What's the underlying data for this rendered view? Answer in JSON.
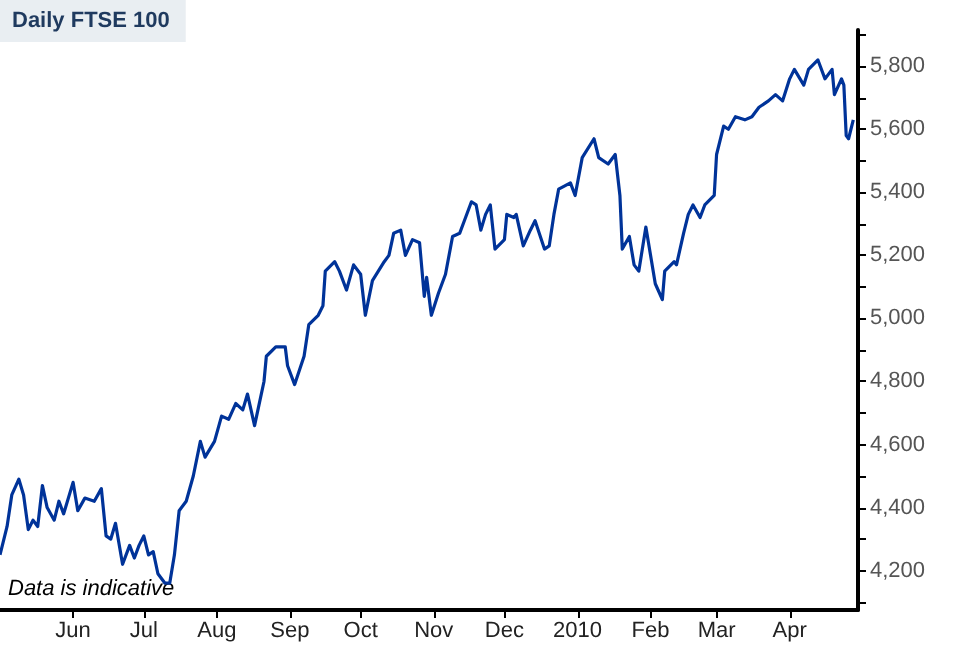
{
  "chart_data": {
    "type": "line",
    "title": "Daily FTSE 100",
    "annotations": [
      "Data is indicative"
    ],
    "x": [
      "2009-05-01",
      "2009-05-04",
      "2009-05-06",
      "2009-05-09",
      "2009-05-11",
      "2009-05-13",
      "2009-05-15",
      "2009-05-17",
      "2009-05-19",
      "2009-05-21",
      "2009-05-24",
      "2009-05-26",
      "2009-05-28",
      "2009-06-01",
      "2009-06-03",
      "2009-06-06",
      "2009-06-10",
      "2009-06-13",
      "2009-06-15",
      "2009-06-17",
      "2009-06-19",
      "2009-06-22",
      "2009-06-25",
      "2009-06-27",
      "2009-06-29",
      "2009-07-01",
      "2009-07-03",
      "2009-07-05",
      "2009-07-07",
      "2009-07-10",
      "2009-07-12",
      "2009-07-14",
      "2009-07-16",
      "2009-07-19",
      "2009-07-22",
      "2009-07-25",
      "2009-07-27",
      "2009-07-31",
      "2009-08-03",
      "2009-08-06",
      "2009-08-09",
      "2009-08-12",
      "2009-08-14",
      "2009-08-17",
      "2009-08-21",
      "2009-08-22",
      "2009-08-26",
      "2009-08-30",
      "2009-08-31",
      "2009-09-03",
      "2009-09-07",
      "2009-09-09",
      "2009-09-13",
      "2009-09-15",
      "2009-09-16",
      "2009-09-20",
      "2009-09-22",
      "2009-09-25",
      "2009-09-28",
      "2009-10-01",
      "2009-10-03",
      "2009-10-06",
      "2009-10-11",
      "2009-10-13",
      "2009-10-15",
      "2009-10-18",
      "2009-10-20",
      "2009-10-23",
      "2009-10-26",
      "2009-10-28",
      "2009-10-29",
      "2009-10-31",
      "2009-11-03",
      "2009-11-06",
      "2009-11-09",
      "2009-11-12",
      "2009-11-14",
      "2009-11-17",
      "2009-11-19",
      "2009-11-21",
      "2009-11-23",
      "2009-11-25",
      "2009-11-27",
      "2009-12-01",
      "2009-12-02",
      "2009-12-05",
      "2009-12-06",
      "2009-12-09",
      "2009-12-12",
      "2009-12-14",
      "2009-12-18",
      "2009-12-20",
      "2009-12-22",
      "2009-12-24",
      "2009-12-29",
      "2009-12-31",
      "2010-01-03",
      "2010-01-08",
      "2010-01-10",
      "2010-01-14",
      "2010-01-17",
      "2010-01-19",
      "2010-01-20",
      "2010-01-23",
      "2010-01-25",
      "2010-01-27",
      "2010-01-30",
      "2010-02-03",
      "2010-02-06",
      "2010-02-07",
      "2010-02-11",
      "2010-02-12",
      "2010-02-15",
      "2010-02-17",
      "2010-02-19",
      "2010-02-22",
      "2010-02-24",
      "2010-02-28",
      "2010-03-01",
      "2010-03-04",
      "2010-03-06",
      "2010-03-09",
      "2010-03-13",
      "2010-03-16",
      "2010-03-19",
      "2010-03-23",
      "2010-03-26",
      "2010-03-29",
      "2010-04-01",
      "2010-04-03",
      "2010-04-07",
      "2010-04-09",
      "2010-04-13",
      "2010-04-16",
      "2010-04-19",
      "2010-04-20",
      "2010-04-23",
      "2010-04-24",
      "2010-04-25",
      "2010-04-26",
      "2010-04-28"
    ],
    "series": [
      {
        "color": "#003399",
        "values": [
          4250,
          4340,
          4440,
          4490,
          4440,
          4330,
          4360,
          4340,
          4470,
          4400,
          4360,
          4420,
          4380,
          4480,
          4390,
          4430,
          4420,
          4460,
          4310,
          4300,
          4350,
          4220,
          4280,
          4240,
          4280,
          4310,
          4250,
          4260,
          4190,
          4160,
          4160,
          4250,
          4390,
          4420,
          4500,
          4610,
          4560,
          4610,
          4690,
          4680,
          4730,
          4710,
          4760,
          4660,
          4800,
          4880,
          4910,
          4910,
          4850,
          4790,
          4880,
          4980,
          5010,
          5040,
          5150,
          5180,
          5150,
          5090,
          5170,
          5140,
          5010,
          5120,
          5180,
          5200,
          5270,
          5280,
          5200,
          5250,
          5240,
          5070,
          5130,
          5010,
          5080,
          5140,
          5260,
          5270,
          5310,
          5370,
          5360,
          5280,
          5330,
          5360,
          5220,
          5250,
          5330,
          5320,
          5330,
          5230,
          5280,
          5310,
          5220,
          5230,
          5330,
          5410,
          5430,
          5390,
          5510,
          5570,
          5510,
          5490,
          5520,
          5390,
          5220,
          5260,
          5170,
          5150,
          5290,
          5110,
          5060,
          5150,
          5180,
          5170,
          5270,
          5330,
          5360,
          5320,
          5360,
          5390,
          5520,
          5610,
          5600,
          5640,
          5630,
          5640,
          5670,
          5690,
          5710,
          5690,
          5760,
          5790,
          5740,
          5790,
          5820,
          5760,
          5790,
          5710,
          5760,
          5740,
          5580,
          5570,
          5630
        ]
      }
    ],
    "xlim": [
      "2009-05-01",
      "2010-04-30"
    ],
    "xticks": [
      {
        "value": "2009-06-01",
        "label": "Jun"
      },
      {
        "value": "2009-07-01",
        "label": "Jul"
      },
      {
        "value": "2009-08-01",
        "label": "Aug"
      },
      {
        "value": "2009-09-01",
        "label": "Sep"
      },
      {
        "value": "2009-10-01",
        "label": "Oct"
      },
      {
        "value": "2009-11-01",
        "label": "Nov"
      },
      {
        "value": "2009-12-01",
        "label": "Dec"
      },
      {
        "value": "2010-01-01",
        "label": "2010"
      },
      {
        "value": "2010-02-01",
        "label": "Feb"
      },
      {
        "value": "2010-03-01",
        "label": "Mar"
      },
      {
        "value": "2010-04-01",
        "label": "Apr"
      }
    ],
    "ylim": [
      4075,
      5915
    ],
    "yticks": [
      {
        "value": 4100,
        "label": null
      },
      {
        "value": 4200,
        "label": "4,200"
      },
      {
        "value": 4300,
        "label": null
      },
      {
        "value": 4400,
        "label": "4,400"
      },
      {
        "value": 4500,
        "label": null
      },
      {
        "value": 4600,
        "label": "4,600"
      },
      {
        "value": 4700,
        "label": null
      },
      {
        "value": 4800,
        "label": "4,800"
      },
      {
        "value": 4900,
        "label": null
      },
      {
        "value": 5000,
        "label": "5,000"
      },
      {
        "value": 5100,
        "label": null
      },
      {
        "value": 5200,
        "label": "5,200"
      },
      {
        "value": 5300,
        "label": null
      },
      {
        "value": 5400,
        "label": "5,400"
      },
      {
        "value": 5500,
        "label": null
      },
      {
        "value": 5600,
        "label": "5,600"
      },
      {
        "value": 5700,
        "label": null
      },
      {
        "value": 5800,
        "label": "5,800"
      },
      {
        "value": 5900,
        "label": null
      }
    ],
    "grid": false,
    "marker": "none",
    "line_style": "solid"
  }
}
